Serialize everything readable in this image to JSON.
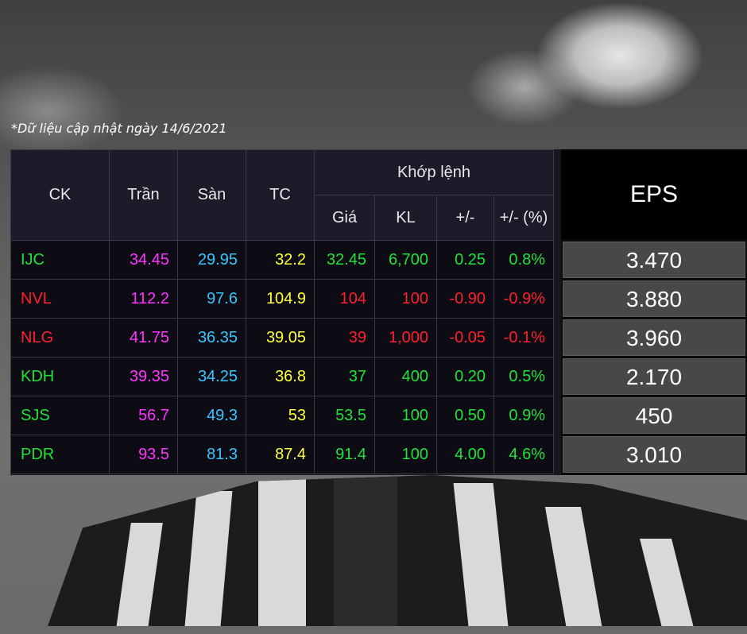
{
  "note": "*Dữ liệu cập nhật ngày 14/6/2021",
  "headers": {
    "ck": "CK",
    "tran": "Trần",
    "san": "Sàn",
    "tc": "TC",
    "khop_lenh": "Khớp lệnh",
    "gia": "Giá",
    "kl": "KL",
    "change": "+/-",
    "change_pct": "+/- (%)",
    "eps": "EPS"
  },
  "colors": {
    "ceiling": "#ff33ff",
    "floor": "#38c6ff",
    "reference": "#ffff3b",
    "up": "#22e03a",
    "down": "#ff1f2d"
  },
  "rows": [
    {
      "ck": "IJC",
      "tran": "34.45",
      "san": "29.95",
      "tc": "32.2",
      "gia": "32.45",
      "kl": "6,700",
      "change": "0.25",
      "change_pct": "0.8%",
      "eps": "3.470",
      "trend": "up"
    },
    {
      "ck": "NVL",
      "tran": "112.2",
      "san": "97.6",
      "tc": "104.9",
      "gia": "104",
      "kl": "100",
      "change": "-0.90",
      "change_pct": "-0.9%",
      "eps": "3.880",
      "trend": "down"
    },
    {
      "ck": "NLG",
      "tran": "41.75",
      "san": "36.35",
      "tc": "39.05",
      "gia": "39",
      "kl": "1,000",
      "change": "-0.05",
      "change_pct": "-0.1%",
      "eps": "3.960",
      "trend": "down"
    },
    {
      "ck": "KDH",
      "tran": "39.35",
      "san": "34.25",
      "tc": "36.8",
      "gia": "37",
      "kl": "400",
      "change": "0.20",
      "change_pct": "0.5%",
      "eps": "2.170",
      "trend": "up"
    },
    {
      "ck": "SJS",
      "tran": "56.7",
      "san": "49.3",
      "tc": "53",
      "gia": "53.5",
      "kl": "100",
      "change": "0.50",
      "change_pct": "0.9%",
      "eps": "450",
      "trend": "up"
    },
    {
      "ck": "PDR",
      "tran": "93.5",
      "san": "81.3",
      "tc": "87.4",
      "gia": "91.4",
      "kl": "100",
      "change": "4.00",
      "change_pct": "4.6%",
      "eps": "3.010",
      "trend": "up"
    }
  ]
}
